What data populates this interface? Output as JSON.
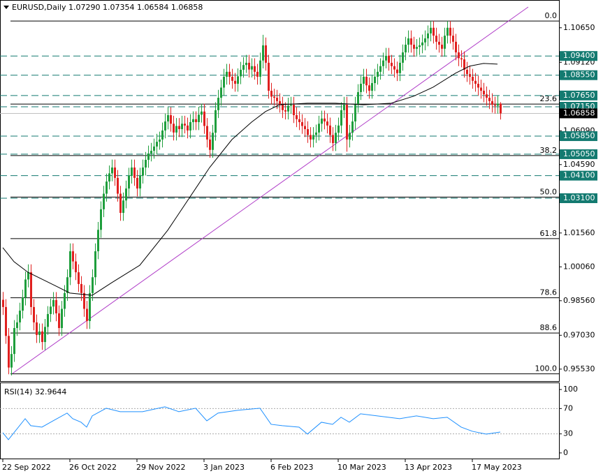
{
  "chart_data": {
    "type": "candlestick",
    "title": "EURUSD,Daily  1.07290 1.07354 1.06584 1.06858",
    "up_color": "#1e9e3c",
    "down_color": "#e0201f",
    "open": [
      0.986,
      0.9828,
      0.97,
      0.956,
      0.962,
      0.9735,
      0.976,
      0.9812,
      0.987,
      0.995,
      0.9982,
      0.9828,
      0.976,
      0.9704,
      0.972,
      0.9673,
      0.974,
      0.9797,
      0.983,
      0.9859,
      0.98,
      0.9735,
      0.982,
      0.989,
      0.996,
      1.0075,
      1.003,
      0.9982,
      0.993,
      0.989,
      0.982,
      0.9766,
      0.989,
      0.996,
      1.0075,
      1.017,
      1.0261,
      1.033,
      1.0384,
      1.042,
      1.0446,
      1.04,
      1.033,
      1.0245,
      1.03,
      1.0353,
      1.041,
      1.0446,
      1.04,
      1.0353,
      1.041,
      1.0446,
      1.048,
      1.0508,
      1.052,
      1.0539,
      1.056,
      1.057,
      1.061,
      1.065,
      1.0678,
      1.064,
      1.0601,
      1.063,
      1.0616,
      1.064,
      1.0632,
      1.061,
      1.0647,
      1.066,
      1.0647,
      1.068,
      1.0694,
      1.063,
      1.057,
      1.0524,
      1.06,
      1.07,
      1.0755,
      1.08,
      1.0848,
      1.087,
      1.0848,
      1.083,
      1.0817,
      1.085,
      1.0879,
      1.09,
      1.091,
      1.088,
      1.0895,
      1.087,
      1.0848,
      1.092,
      1.0987,
      1.091,
      1.0786,
      1.076,
      1.0755,
      1.074,
      1.0724,
      1.07,
      1.0694,
      1.072,
      1.0724,
      1.0678,
      1.066,
      1.0647,
      1.063,
      1.0616,
      1.059,
      1.057,
      1.059,
      1.0601,
      1.064,
      1.0663,
      1.065,
      1.0632,
      1.059,
      1.0554,
      1.06,
      1.0632,
      1.07,
      1.0724,
      1.057,
      1.06,
      1.065,
      1.0724,
      1.078,
      1.0817,
      1.0848,
      1.081,
      1.0786,
      1.082,
      1.0848,
      1.087,
      1.0895,
      1.092,
      1.0941,
      1.091,
      1.0895,
      1.088,
      1.0864,
      1.091,
      1.0956,
      1.099,
      1.1018,
      1.099,
      1.0972,
      1.098,
      1.0987,
      1.1,
      1.1018,
      1.104,
      1.1065,
      1.103,
      1.1003,
      1.099,
      1.0972,
      1.103,
      1.1065,
      1.103,
      1.1003,
      1.0956,
      1.093,
      1.0925,
      1.0879,
      1.086,
      1.0848,
      1.083,
      1.0817,
      1.08,
      1.0786,
      1.077,
      1.0755,
      1.074,
      1.0724,
      1.072,
      1.0729
    ],
    "high": [
      0.9895,
      0.9863,
      0.9735,
      0.9655,
      0.977,
      0.9795,
      0.9847,
      0.9905,
      0.9985,
      1.0017,
      1.0017,
      0.9863,
      0.9795,
      0.9755,
      0.9755,
      0.9775,
      0.9832,
      0.9865,
      0.9894,
      0.9894,
      0.9835,
      0.9855,
      0.9925,
      0.9995,
      1.011,
      1.011,
      1.0065,
      1.0017,
      0.9965,
      0.9925,
      0.9855,
      0.9925,
      0.9995,
      1.011,
      1.0205,
      1.0296,
      1.0365,
      1.0419,
      1.0455,
      1.0481,
      1.0481,
      1.0435,
      1.0365,
      1.0335,
      1.0388,
      1.0445,
      1.0481,
      1.0481,
      1.0435,
      1.0445,
      1.0481,
      1.0515,
      1.0543,
      1.0555,
      1.0574,
      1.0595,
      1.0605,
      1.0645,
      1.0685,
      1.0713,
      1.0713,
      1.0675,
      1.0665,
      1.0665,
      1.0675,
      1.0675,
      1.0667,
      1.0682,
      1.0695,
      1.0695,
      1.0715,
      1.0729,
      1.0729,
      1.0665,
      1.0605,
      1.0635,
      1.0735,
      1.079,
      1.0835,
      1.0883,
      1.0905,
      1.0905,
      1.0883,
      1.0865,
      1.0885,
      1.0914,
      1.0935,
      1.0945,
      1.0945,
      1.093,
      1.093,
      1.0905,
      1.0955,
      1.1034,
      1.1022,
      1.0945,
      1.0821,
      1.0795,
      1.079,
      1.0775,
      1.0759,
      1.0735,
      1.0755,
      1.0759,
      1.0759,
      1.0713,
      1.0695,
      1.0682,
      1.0665,
      1.0651,
      1.0625,
      1.0625,
      1.0636,
      1.0675,
      1.0698,
      1.0698,
      1.0685,
      1.0667,
      1.0625,
      1.0635,
      1.0667,
      1.0735,
      1.0759,
      1.0759,
      1.0635,
      1.0685,
      1.0759,
      1.0815,
      1.0852,
      1.0883,
      1.0883,
      1.0845,
      1.0855,
      1.0883,
      1.0905,
      1.093,
      1.0955,
      1.0976,
      1.0976,
      1.0945,
      1.093,
      1.0915,
      1.0945,
      1.0991,
      1.1025,
      1.1053,
      1.1053,
      1.1025,
      1.1015,
      1.1022,
      1.1035,
      1.1053,
      1.1075,
      1.1095,
      1.1095,
      1.1065,
      1.1038,
      1.1025,
      1.1065,
      1.1095,
      1.1095,
      1.1065,
      1.1038,
      1.0991,
      1.0965,
      1.096,
      1.0914,
      1.0895,
      1.0883,
      1.0865,
      1.0852,
      1.0835,
      1.0821,
      1.0805,
      1.079,
      1.0775,
      1.0759,
      1.0764,
      1.07354
    ],
    "low": [
      0.9793,
      0.9665,
      0.953,
      0.9525,
      0.9585,
      0.97,
      0.9725,
      0.9777,
      0.9835,
      0.9915,
      0.9793,
      0.9725,
      0.9669,
      0.9669,
      0.9638,
      0.9638,
      0.9705,
      0.9762,
      0.9795,
      0.9765,
      0.97,
      0.97,
      0.9785,
      0.9855,
      0.9925,
      0.9995,
      0.9947,
      0.9895,
      0.9855,
      0.9785,
      0.9731,
      0.9731,
      0.9855,
      0.9925,
      1.004,
      1.0135,
      1.0226,
      1.0295,
      1.0349,
      1.0385,
      1.0365,
      1.0295,
      1.021,
      1.021,
      1.0265,
      1.0318,
      1.0375,
      1.0365,
      1.0318,
      1.0318,
      1.0375,
      1.0411,
      1.0445,
      1.0473,
      1.0485,
      1.0504,
      1.0525,
      1.0535,
      1.0575,
      1.0615,
      1.0605,
      1.0566,
      1.0566,
      1.0581,
      1.0581,
      1.0597,
      1.0575,
      1.0575,
      1.0612,
      1.0612,
      1.0612,
      1.0645,
      1.0595,
      1.0535,
      1.0489,
      1.0489,
      1.0565,
      1.0665,
      1.072,
      1.0765,
      1.0813,
      1.0813,
      1.0795,
      1.0782,
      1.0782,
      1.0815,
      1.0844,
      1.0865,
      1.0845,
      1.0845,
      1.0835,
      1.0813,
      1.0813,
      1.0885,
      1.0875,
      1.0751,
      1.0725,
      1.072,
      1.0705,
      1.0689,
      1.0665,
      1.0659,
      1.0659,
      1.0685,
      1.0643,
      1.0625,
      1.0612,
      1.0595,
      1.0581,
      1.0555,
      1.0535,
      1.0535,
      1.0555,
      1.0566,
      1.0605,
      1.0615,
      1.0597,
      1.0555,
      1.0519,
      1.0519,
      1.0565,
      1.0597,
      1.0665,
      1.0516,
      1.0535,
      1.0565,
      1.0615,
      1.0689,
      1.0745,
      1.0782,
      1.0775,
      1.0751,
      1.0751,
      1.0785,
      1.0813,
      1.0835,
      1.086,
      1.0885,
      1.0875,
      1.086,
      1.0845,
      1.0829,
      1.0829,
      1.0875,
      1.0921,
      1.0955,
      1.0955,
      1.0937,
      1.0937,
      1.0945,
      1.0952,
      1.0965,
      1.0983,
      1.1005,
      1.0995,
      1.0968,
      1.0955,
      1.0937,
      1.0937,
      1.0995,
      1.0995,
      1.0968,
      1.0921,
      1.0895,
      1.089,
      1.0844,
      1.0825,
      1.0813,
      1.0795,
      1.0782,
      1.0765,
      1.0751,
      1.0735,
      1.072,
      1.0705,
      1.0689,
      1.0685,
      1.0685,
      1.06584
    ],
    "close": [
      0.9828,
      0.97,
      0.956,
      0.962,
      0.9735,
      0.976,
      0.9812,
      0.987,
      0.995,
      0.9982,
      0.9828,
      0.976,
      0.9704,
      0.972,
      0.9673,
      0.974,
      0.9797,
      0.983,
      0.9859,
      0.98,
      0.9735,
      0.982,
      0.989,
      0.996,
      1.0075,
      1.003,
      0.9982,
      0.993,
      0.989,
      0.982,
      0.9766,
      0.989,
      0.996,
      1.0075,
      1.017,
      1.0261,
      1.033,
      1.0384,
      1.042,
      1.0446,
      1.04,
      1.033,
      1.0245,
      1.03,
      1.0353,
      1.041,
      1.0446,
      1.04,
      1.0353,
      1.041,
      1.0446,
      1.048,
      1.0508,
      1.052,
      1.0539,
      1.056,
      1.057,
      1.061,
      1.065,
      1.0678,
      1.064,
      1.0601,
      1.063,
      1.0616,
      1.064,
      1.0632,
      1.061,
      1.0647,
      1.066,
      1.0647,
      1.068,
      1.0694,
      1.063,
      1.057,
      1.0524,
      1.06,
      1.07,
      1.0755,
      1.08,
      1.0848,
      1.087,
      1.0848,
      1.083,
      1.0817,
      1.085,
      1.0879,
      1.09,
      1.091,
      1.088,
      1.0895,
      1.087,
      1.0848,
      1.092,
      1.0987,
      1.091,
      1.0786,
      1.076,
      1.0755,
      1.074,
      1.0724,
      1.07,
      1.0694,
      1.072,
      1.0724,
      1.0678,
      1.066,
      1.0647,
      1.063,
      1.0616,
      1.059,
      1.057,
      1.059,
      1.0601,
      1.064,
      1.0663,
      1.065,
      1.0632,
      1.059,
      1.0554,
      1.06,
      1.0632,
      1.07,
      1.0724,
      1.057,
      1.06,
      1.065,
      1.0724,
      1.078,
      1.0817,
      1.0848,
      1.081,
      1.0786,
      1.082,
      1.0848,
      1.087,
      1.0895,
      1.092,
      1.0941,
      1.091,
      1.0895,
      1.088,
      1.0864,
      1.091,
      1.0956,
      1.099,
      1.1018,
      1.099,
      1.0972,
      1.098,
      1.0987,
      1.1,
      1.1018,
      1.104,
      1.1065,
      1.103,
      1.1003,
      1.099,
      1.0972,
      1.103,
      1.1065,
      1.103,
      1.1003,
      1.0956,
      1.093,
      1.0925,
      1.0879,
      1.086,
      1.0848,
      1.083,
      1.0817,
      1.08,
      1.0786,
      1.077,
      1.0755,
      1.074,
      1.0724,
      1.072,
      1.0729,
      1.06858
    ],
    "xlim": [
      -1,
      199
    ],
    "ylim": [
      0.95,
      1.1188
    ],
    "yticks": [
      {
        "value": 1.1065,
        "label": "1.10650"
      },
      {
        "value": 1.0912,
        "label": "1.09120"
      },
      {
        "value": 1.0609,
        "label": "1.06090"
      },
      {
        "value": 1.0459,
        "label": "1.04590"
      },
      {
        "value": 1.0156,
        "label": "1.01560"
      },
      {
        "value": 1.0006,
        "label": "1.00060"
      },
      {
        "value": 0.9856,
        "label": "0.98560"
      },
      {
        "value": 0.9703,
        "label": "0.97030"
      },
      {
        "value": 0.9553,
        "label": "0.95530"
      }
    ],
    "xticks": [
      {
        "value": 0,
        "label": "22 Sep 2022"
      },
      {
        "value": 24,
        "label": "26 Oct 2022"
      },
      {
        "value": 48,
        "label": "29 Nov 2022"
      },
      {
        "value": 72,
        "label": "3 Jan 2023"
      },
      {
        "value": 96,
        "label": "6 Feb 2023"
      },
      {
        "value": 120,
        "label": "10 Mar 2023"
      },
      {
        "value": 144,
        "label": "13 Apr 2023"
      },
      {
        "value": 168,
        "label": "17 May 2023"
      }
    ],
    "level_color": "#137a70",
    "levels": [
      {
        "value": 1.094,
        "label": "1.09400"
      },
      {
        "value": 1.0855,
        "label": "1.08550"
      },
      {
        "value": 1.0765,
        "label": "1.07650"
      },
      {
        "value": 1.0715,
        "label": "1.07150"
      },
      {
        "value": 1.0585,
        "label": "1.05850"
      },
      {
        "value": 1.0505,
        "label": "1.05050"
      },
      {
        "value": 1.041,
        "label": "1.04100"
      },
      {
        "value": 1.031,
        "label": "1.03100"
      }
    ],
    "current": {
      "value": 1.06858,
      "label": "1.06858"
    },
    "fib_levels": [
      {
        "value": 1.1095,
        "label": "0.0"
      },
      {
        "value": 1.0727,
        "label": "23.6"
      },
      {
        "value": 1.0499,
        "label": "38.2"
      },
      {
        "value": 1.0315,
        "label": "50.0"
      },
      {
        "value": 1.0131,
        "label": "61.8"
      },
      {
        "value": 0.9869,
        "label": "78.6"
      },
      {
        "value": 0.9713,
        "label": "88.6"
      },
      {
        "value": 0.9532,
        "label": "100.0"
      }
    ],
    "trendline": {
      "x": [
        3.5,
        188
      ],
      "values": [
        0.9534,
        1.1157
      ],
      "color": "#b03cc8"
    },
    "ma": {
      "x": [
        0,
        4,
        9,
        19,
        24,
        32,
        39,
        49,
        59,
        69,
        74,
        82,
        89,
        94,
        99,
        109,
        119,
        129,
        139,
        147,
        154,
        162,
        167,
        172,
        177
      ],
      "values": [
        1.0091,
        1.0029,
        0.9982,
        0.9921,
        0.989,
        0.988,
        0.9936,
        1.0013,
        1.0168,
        1.0353,
        1.0446,
        1.057,
        1.0647,
        1.0694,
        1.0724,
        1.0731,
        1.0731,
        1.0724,
        1.0731,
        1.0762,
        1.0802,
        1.0864,
        1.0895,
        1.0907,
        1.0904
      ],
      "color": "#000000"
    },
    "rsi": {
      "title": "RSI(14) 32.9644",
      "color": "#1e90ff",
      "ylim": [
        -10,
        110
      ],
      "yticks": [
        100,
        70,
        30,
        0
      ],
      "levels": [
        70,
        30
      ],
      "x": [
        0,
        2,
        4,
        8,
        10,
        14,
        18,
        23,
        25,
        28,
        30,
        32,
        37,
        42,
        50,
        58,
        63,
        69,
        73,
        77,
        84,
        92,
        96,
        100,
        106,
        109,
        114,
        118,
        121,
        124,
        128,
        136,
        142,
        148,
        154,
        159,
        164,
        168,
        173,
        178
      ],
      "values": [
        31.9,
        20.9,
        31.9,
        54.0,
        43.0,
        40.7,
        50.6,
        62.8,
        54.0,
        48.4,
        40.7,
        58.4,
        70.5,
        65.0,
        65.0,
        72.7,
        65.0,
        70.5,
        50.6,
        62.8,
        67.2,
        70.5,
        45.1,
        43.0,
        40.7,
        29.7,
        48.4,
        45.1,
        56.2,
        48.4,
        61.7,
        57.3,
        54.0,
        58.4,
        54.0,
        56.2,
        40.7,
        34.1,
        29.7,
        32.96
      ]
    }
  }
}
